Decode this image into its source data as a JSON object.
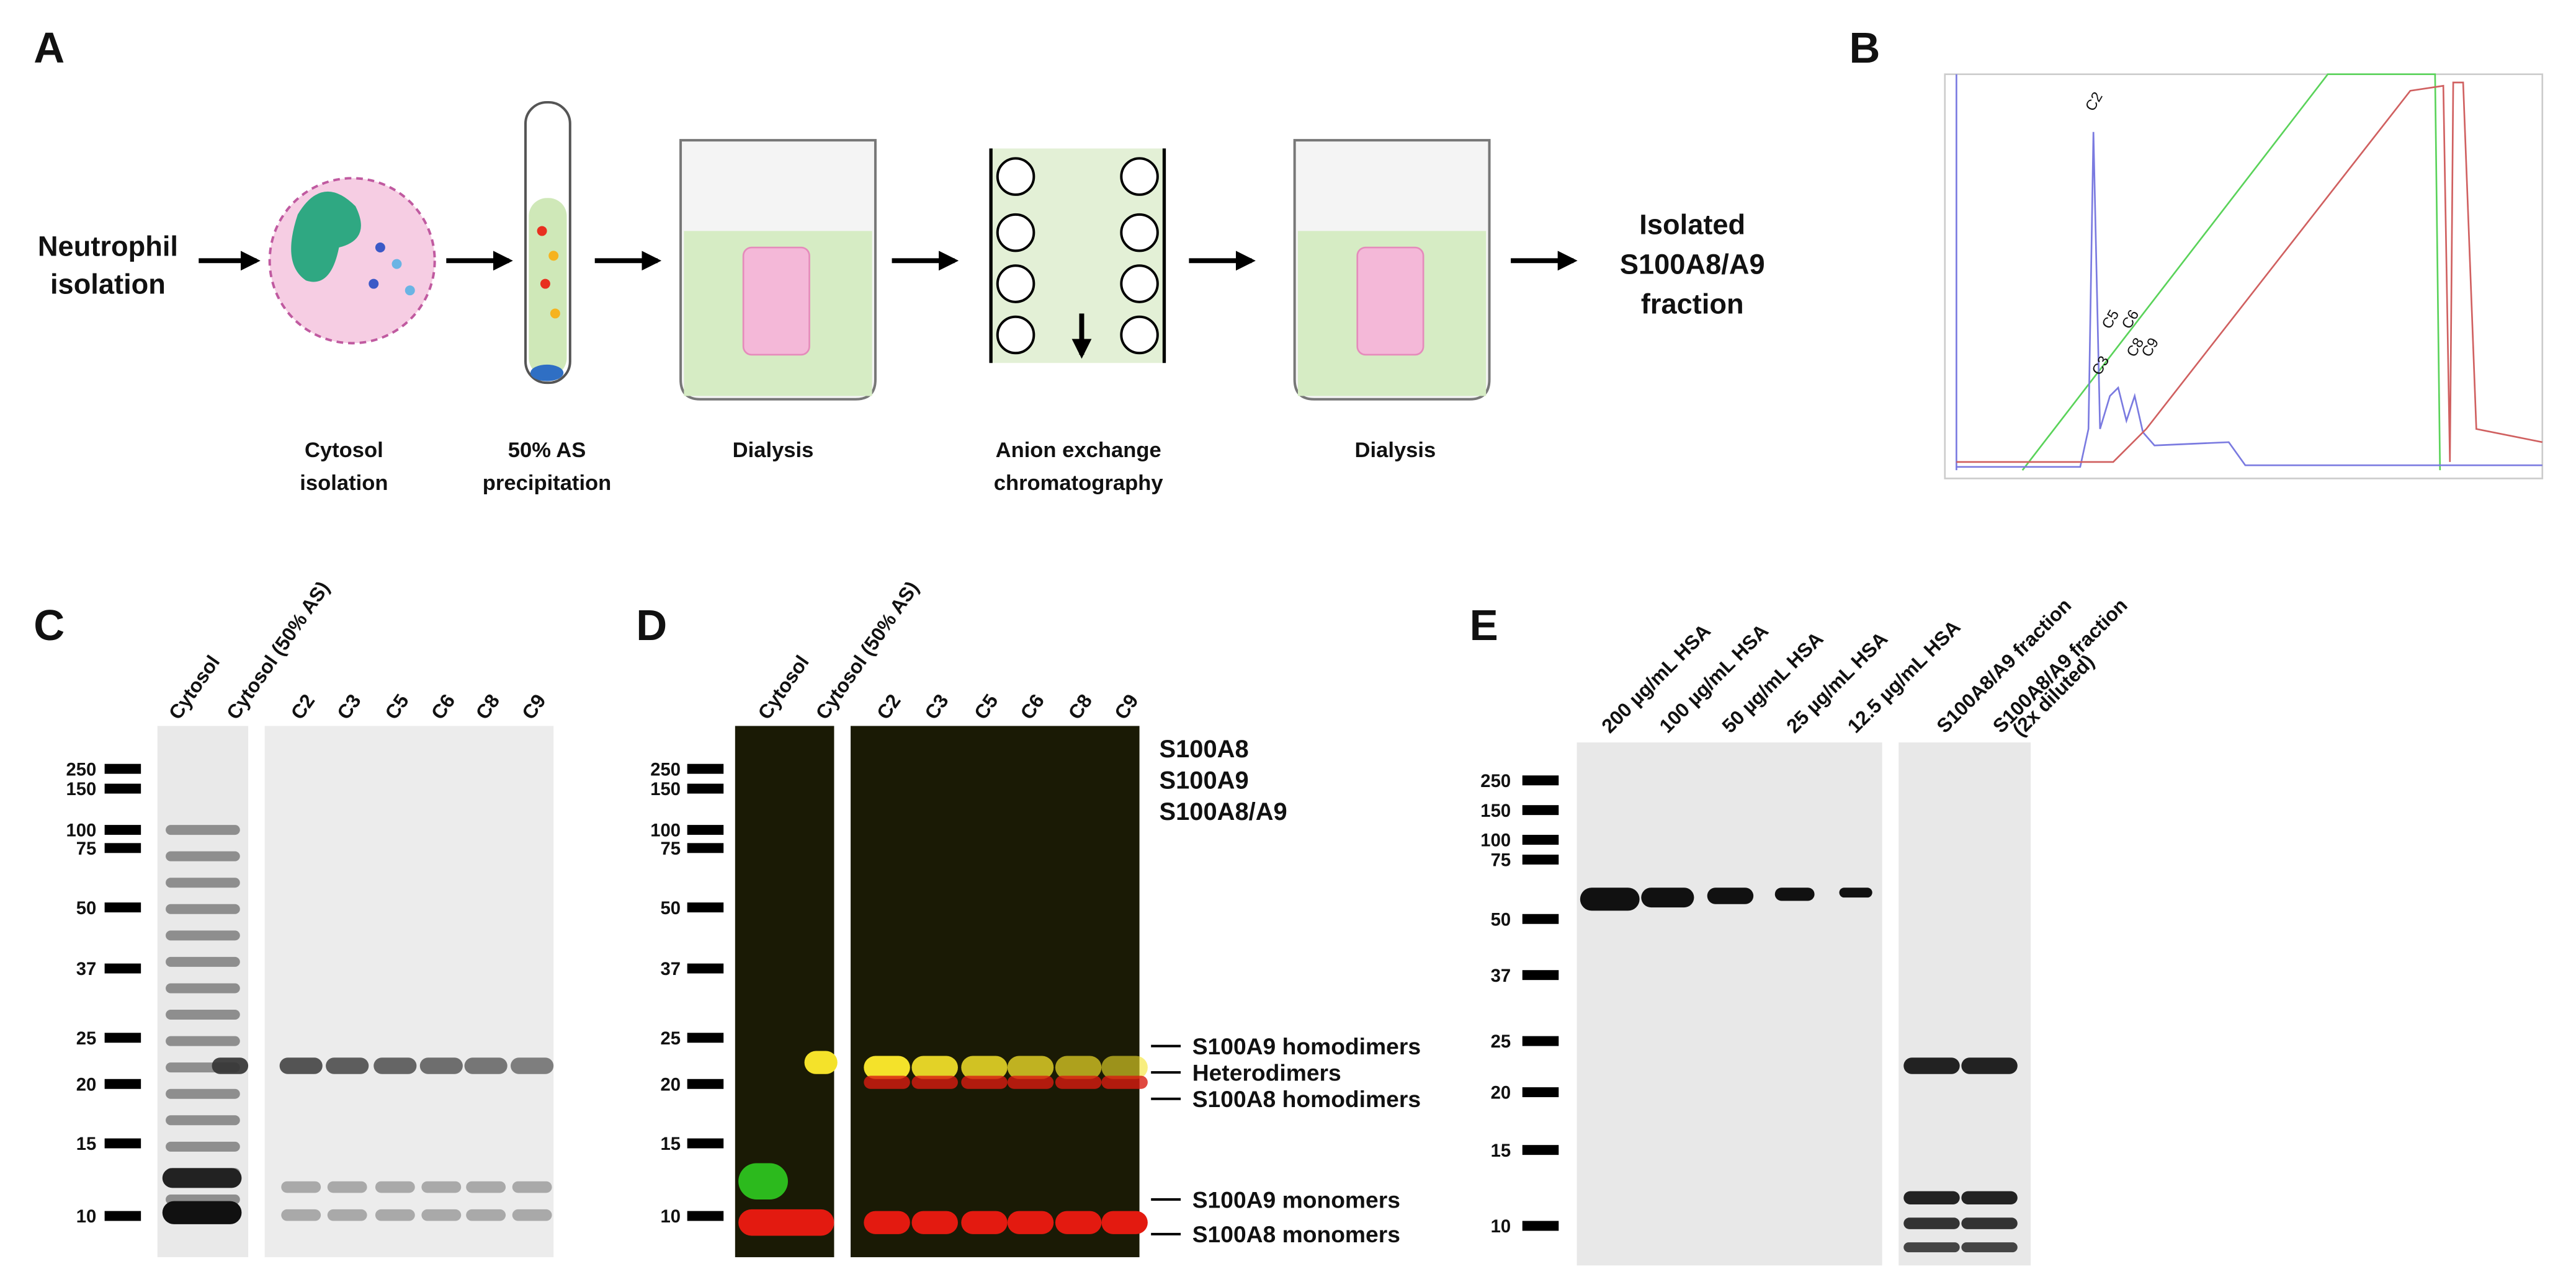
{
  "panel_labels": [
    "A",
    "B",
    "C",
    "D",
    "E"
  ],
  "workflow": {
    "start": [
      "Neutrophil",
      "isolation"
    ],
    "steps": [
      [
        "Cytosol",
        "isolation"
      ],
      [
        "50% AS",
        "precipitation"
      ],
      [
        "Dialysis"
      ],
      [
        "Anion exchange",
        "chromatography"
      ],
      [
        "Dialysis"
      ]
    ],
    "end": [
      "Isolated",
      "S100A8/A9",
      "fraction"
    ]
  },
  "chromatogram": {
    "peak_labels": [
      "C2",
      "C3",
      "C5",
      "C6",
      "C8",
      "C9"
    ]
  },
  "gel_c": {
    "lanes": [
      "Cytosol",
      "Cytosol (50% AS)",
      "C2",
      "C3",
      "C5",
      "C6",
      "C8",
      "C9"
    ],
    "markers": [
      250,
      150,
      100,
      75,
      50,
      37,
      25,
      20,
      15,
      10
    ]
  },
  "gel_d": {
    "lanes": [
      "Cytosol",
      "Cytosol (50% AS)",
      "C2",
      "C3",
      "C5",
      "C6",
      "C8",
      "C9"
    ],
    "markers": [
      250,
      150,
      100,
      75,
      50,
      37,
      25,
      20,
      15,
      10
    ],
    "legend": [
      "S100A8",
      "S100A9",
      "S100A8/A9"
    ],
    "annotations": [
      "S100A9 homodimers",
      "Heterodimers",
      "S100A8 homodimers",
      "S100A9 monomers",
      "S100A8 monomers"
    ]
  },
  "gel_e": {
    "lanes": [
      [
        "200 µg/mL HSA"
      ],
      [
        "100 µg/mL HSA"
      ],
      [
        "50 µg/mL HSA"
      ],
      [
        "25 µg/mL HSA"
      ],
      [
        "12.5 µg/mL HSA"
      ],
      [
        "S100A8/A9 fraction"
      ],
      [
        "S100A8/A9 fraction",
        "(2x diluted)"
      ]
    ],
    "markers": [
      250,
      150,
      100,
      75,
      50,
      37,
      25,
      20,
      15,
      10
    ]
  }
}
